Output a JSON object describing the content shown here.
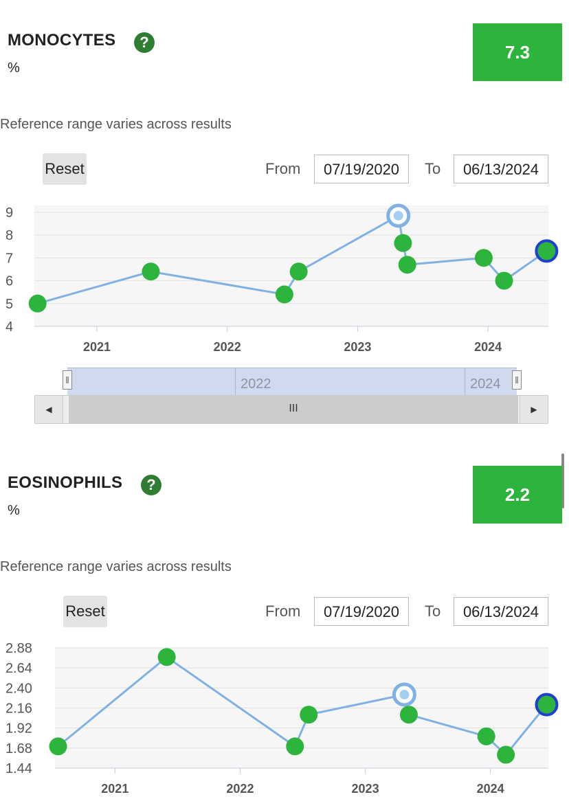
{
  "monocytes": {
    "title": "MONOCYTES",
    "unit": "%",
    "latest_value": "7.3",
    "reference_note": "Reference range varies across results",
    "reset_label": "Reset",
    "from_label": "From",
    "from_value": "07/19/2020",
    "to_label": "To",
    "to_value": "06/13/2024",
    "navigator_labels": [
      "2022",
      "2024"
    ],
    "chart_data": {
      "type": "line",
      "x": [
        "2020-07-19",
        "2021-06-01",
        "2022-06-10",
        "2022-07-20",
        "2023-04-25",
        "2023-05-08",
        "2023-05-20",
        "2023-12-20",
        "2024-02-15",
        "2024-06-13"
      ],
      "values": [
        5.0,
        6.4,
        5.4,
        6.4,
        8.85,
        7.65,
        6.7,
        7.0,
        6.0,
        7.3
      ],
      "y_ticks": [
        4,
        5,
        6,
        7,
        8,
        9
      ],
      "ylim": [
        4,
        9.3
      ],
      "x_tick_labels": [
        "2021",
        "2022",
        "2023",
        "2024"
      ],
      "highlight_hollow_index": 4,
      "highlight_selected_index": 9,
      "grid": true
    }
  },
  "eosinophils": {
    "title": "EOSINOPHILS",
    "unit": "%",
    "latest_value": "2.2",
    "reference_note": "Reference range varies across results",
    "reset_label": "Reset",
    "from_label": "From",
    "from_value": "07/19/2020",
    "to_label": "To",
    "to_value": "06/13/2024",
    "chart_data": {
      "type": "line",
      "x": [
        "2020-07-19",
        "2021-06-01",
        "2022-06-10",
        "2022-07-20",
        "2023-04-25",
        "2023-05-08",
        "2023-12-20",
        "2024-02-15",
        "2024-06-13"
      ],
      "values": [
        1.7,
        2.77,
        1.7,
        2.08,
        2.32,
        2.08,
        1.82,
        1.6,
        2.2
      ],
      "y_ticks": [
        "1.44",
        "1.68",
        "1.92",
        "2.16",
        "2.40",
        "2.64",
        "2.88"
      ],
      "ylim": [
        1.44,
        2.88
      ],
      "x_tick_labels": [
        "2021",
        "2022",
        "2023",
        "2024"
      ],
      "highlight_hollow_index": 4,
      "highlight_selected_index": 8,
      "grid": true
    }
  },
  "icons": {
    "help": "question-mark-icon",
    "left": "left-arrow-icon",
    "right": "right-arrow-icon",
    "grip": "scroll-grip-icon"
  },
  "colors": {
    "accent_green": "#2db43c",
    "line": "#7fb1e3",
    "selected_ring": "#1f3fd1",
    "help_green": "#2f7d32"
  }
}
